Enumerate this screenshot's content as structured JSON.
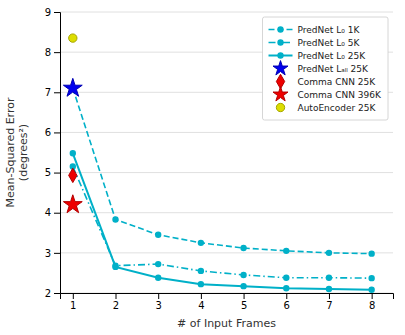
{
  "chart_data": {
    "type": "line",
    "xlabel": "# of Input Frames",
    "ylabel": "Mean-Squared Error\n(degrees²)",
    "x": [
      1,
      2,
      3,
      4,
      5,
      6,
      7,
      8
    ],
    "xlim": [
      0.7,
      8.5
    ],
    "ylim": [
      2.0,
      9.0
    ],
    "xticks": [
      1,
      2,
      3,
      4,
      5,
      6,
      7,
      8
    ],
    "yticks": [
      2,
      3,
      4,
      5,
      6,
      7,
      8,
      9
    ],
    "grid": "y",
    "legend": "upper right",
    "series": [
      {
        "name": "PredNet L₀ 1K",
        "type": "line",
        "color": "#00b0c8",
        "marker": "circle",
        "line_style": "dashed",
        "values": [
          7.1,
          3.83,
          3.45,
          3.25,
          3.12,
          3.05,
          3.0,
          2.98
        ]
      },
      {
        "name": "PredNet L₀ 5K",
        "type": "line",
        "color": "#00b0c8",
        "marker": "circle",
        "line_style": "dashdot",
        "values": [
          5.15,
          2.68,
          2.72,
          2.55,
          2.45,
          2.38,
          2.38,
          2.37
        ]
      },
      {
        "name": "PredNet L₀ 25K",
        "type": "line",
        "color": "#00b0c8",
        "marker": "circle",
        "line_style": "solid",
        "values": [
          5.48,
          2.65,
          2.38,
          2.22,
          2.17,
          2.12,
          2.1,
          2.08
        ]
      },
      {
        "name": "PredNet Lₐₗₗ 25K",
        "type": "scatter",
        "color": "#0000ee",
        "marker": "star",
        "x": [
          1
        ],
        "values": [
          7.1
        ]
      },
      {
        "name": "Comma CNN 25K",
        "type": "scatter",
        "color": "#ee0000",
        "marker": "diamond",
        "x": [
          1
        ],
        "values": [
          4.93
        ]
      },
      {
        "name": "Comma CNN 396K",
        "type": "scatter",
        "color": "#ee0000",
        "marker": "star",
        "x": [
          1
        ],
        "values": [
          4.2
        ]
      },
      {
        "name": "AutoEncoder 25K",
        "type": "scatter",
        "color": "#dddd00",
        "marker": "circle",
        "x": [
          1
        ],
        "values": [
          8.35
        ]
      }
    ]
  }
}
